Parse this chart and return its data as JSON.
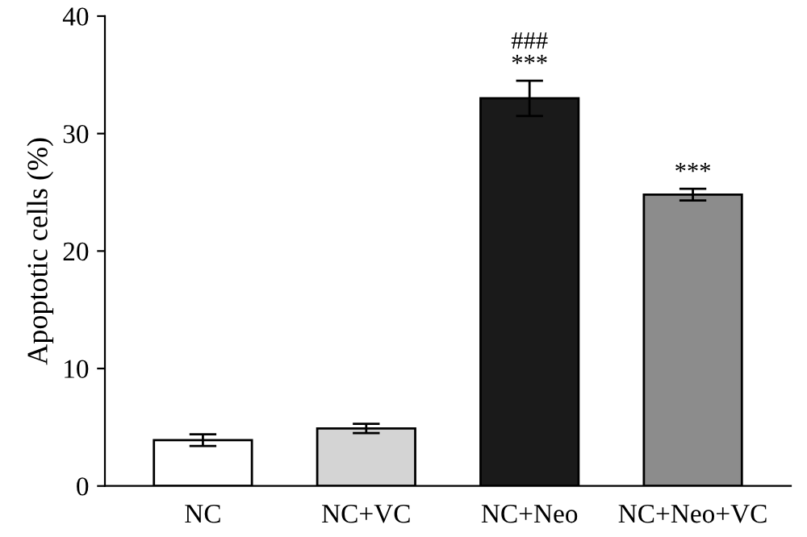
{
  "chart_data": {
    "type": "bar",
    "ylabel": "Apoptotic cells (%)",
    "categories": [
      "NC",
      "NC+VC",
      "NC+Neo",
      "NC+Neo+VC"
    ],
    "values": [
      3.9,
      4.9,
      33.0,
      24.8
    ],
    "errors": [
      0.5,
      0.4,
      1.5,
      0.5
    ],
    "colors": [
      "#ffffff",
      "#d4d4d4",
      "#1a1a1a",
      "#8c8c8c"
    ],
    "ylim": [
      0,
      40
    ],
    "yticks": [
      0,
      10,
      20,
      30,
      40
    ],
    "grid": false,
    "annotations": [
      {
        "text": "###\n***",
        "x": "NC+Neo",
        "y": 34.5
      },
      {
        "text": "***",
        "x": "NC+Neo+VC",
        "y": 25.3
      }
    ]
  }
}
